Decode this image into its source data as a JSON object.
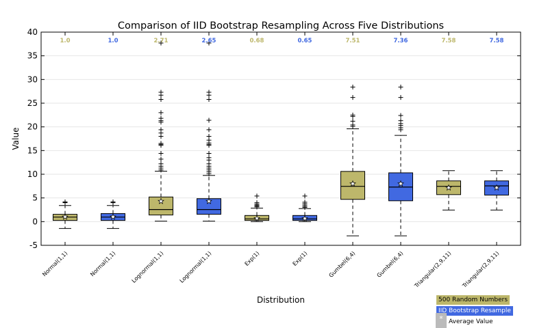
{
  "chart_data": {
    "type": "box",
    "title": "Comparison of IID Bootstrap Resampling Across Five Distributions",
    "xlabel": "Distribution",
    "ylabel": "Value",
    "ylim": [
      -5,
      40
    ],
    "yticks": [
      -5,
      0,
      5,
      10,
      15,
      20,
      25,
      30,
      35,
      40
    ],
    "grid": "horizontal",
    "colors": {
      "original": "#BDB76B",
      "bootstrap": "#4169E1",
      "mean_marker": "#BBBBBB"
    },
    "categories": [
      "Normal(1,1)",
      "Normal(1,1)",
      "Lognormal(1,1)",
      "Lognormal(1,1)",
      "Exp(1)",
      "Exp(1)",
      "Gumbel(6,4)",
      "Gumbel(6,4)",
      "Triangular(2,9,11)",
      "Triangular(2,9,11)"
    ],
    "top_labels": [
      "1.0",
      "1.0",
      "2.71",
      "2.65",
      "0.68",
      "0.65",
      "7.51",
      "7.36",
      "7.58",
      "7.58"
    ],
    "boxes": [
      {
        "group": "original",
        "whislo": -1.45,
        "q1": 0.25,
        "med": 0.96,
        "q3": 1.55,
        "whishi": 3.4,
        "mean": 1.0,
        "fliers": [
          4.0,
          4.1,
          4.15
        ]
      },
      {
        "group": "bootstrap",
        "whislo": -1.45,
        "q1": 0.25,
        "med": 0.96,
        "q3": 1.7,
        "whishi": 3.4,
        "mean": 1.0,
        "fliers": [
          4.0,
          4.15
        ]
      },
      {
        "group": "original",
        "whislo": 0.1,
        "q1": 1.4,
        "med": 2.55,
        "q3": 5.2,
        "whishi": 10.65,
        "mean": 4.3,
        "fliers": [
          10.9,
          11.3,
          11.7,
          12.2,
          13.2,
          14.4,
          16.1,
          16.3,
          16.5,
          18.0,
          18.7,
          19.4,
          21.0,
          21.3,
          21.8,
          23.0,
          25.8,
          26.7,
          27.3,
          37.7
        ]
      },
      {
        "group": "bootstrap",
        "whislo": 0.1,
        "q1": 1.55,
        "med": 2.55,
        "q3": 4.85,
        "whishi": 9.75,
        "mean": 4.3,
        "fliers": [
          10.1,
          10.5,
          10.9,
          11.3,
          11.7,
          12.2,
          13.0,
          13.5,
          14.4,
          16.1,
          16.3,
          16.6,
          17.2,
          18.0,
          19.4,
          21.4,
          25.8,
          26.7,
          27.3,
          37.7
        ]
      },
      {
        "group": "original",
        "whislo": 0.0,
        "q1": 0.25,
        "med": 0.58,
        "q3": 1.3,
        "whishi": 2.85,
        "mean": 0.68,
        "fliers": [
          3.1,
          3.3,
          3.5,
          3.7,
          4.0,
          5.4
        ]
      },
      {
        "group": "bootstrap",
        "whislo": 0.0,
        "q1": 0.25,
        "med": 0.58,
        "q3": 1.3,
        "whishi": 2.75,
        "mean": 0.65,
        "fliers": [
          3.0,
          3.2,
          3.5,
          3.8,
          4.1,
          5.4
        ]
      },
      {
        "group": "original",
        "whislo": -3.0,
        "q1": 4.7,
        "med": 7.45,
        "q3": 10.6,
        "whishi": 19.6,
        "mean": 8.0,
        "fliers": [
          20.1,
          20.4,
          21.2,
          22.2,
          22.5,
          26.2,
          28.4
        ]
      },
      {
        "group": "bootstrap",
        "whislo": -3.0,
        "q1": 4.4,
        "med": 7.3,
        "q3": 10.3,
        "whishi": 18.2,
        "mean": 8.0,
        "fliers": [
          19.4,
          19.8,
          20.3,
          20.7,
          21.3,
          22.4,
          26.2,
          28.4
        ]
      },
      {
        "group": "original",
        "whislo": 2.45,
        "q1": 5.7,
        "med": 7.45,
        "q3": 8.6,
        "whishi": 10.75,
        "mean": 7.15,
        "fliers": []
      },
      {
        "group": "bootstrap",
        "whislo": 2.45,
        "q1": 5.6,
        "med": 7.55,
        "q3": 8.6,
        "whishi": 10.75,
        "mean": 7.15,
        "fliers": []
      }
    ],
    "legend": {
      "placement": "bottom-right",
      "entries": [
        "500 Random Numbers",
        "IID Bootstrap Resample",
        "Average Value"
      ],
      "mean_symbol": "*"
    }
  }
}
